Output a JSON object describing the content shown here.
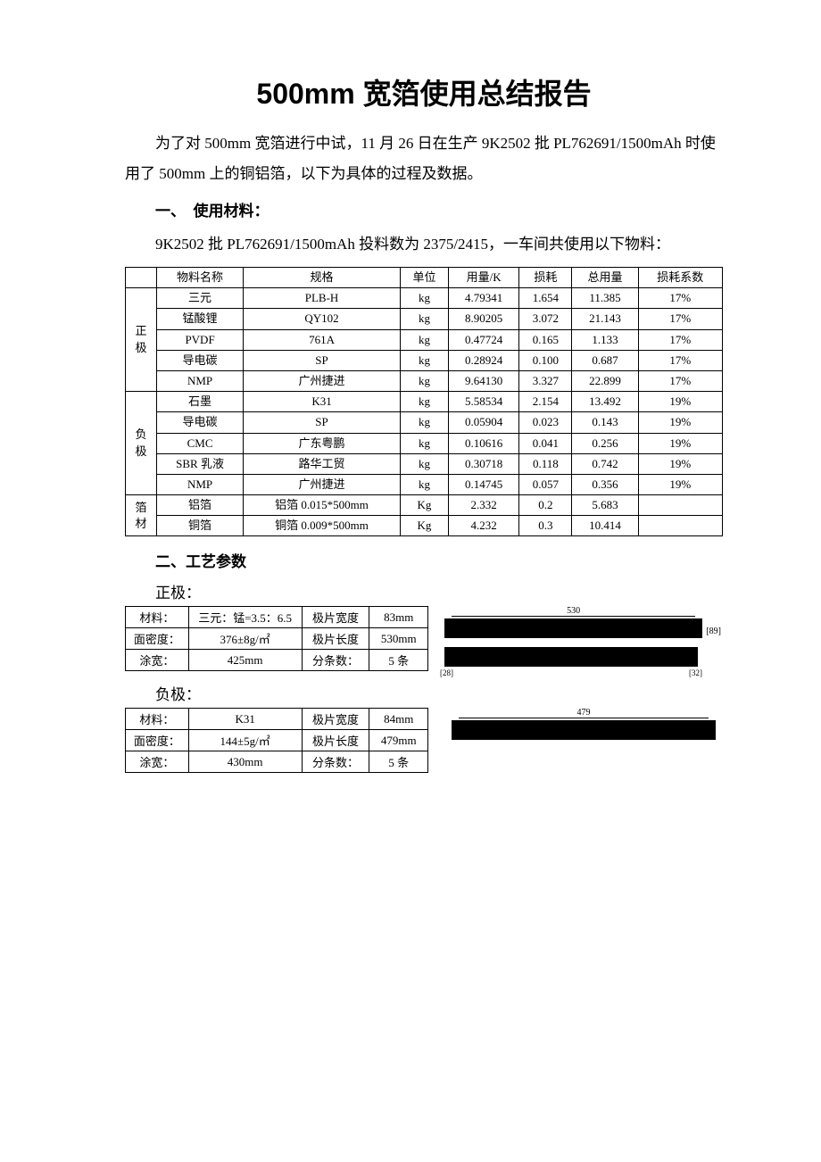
{
  "title": "500mm 宽箔使用总结报告",
  "intro": "为了对 500mm 宽箔进行中试，11 月 26 日在生产 9K2502 批 PL762691/1500mAh 时使用了 500mm 上的铜铝箔，以下为具体的过程及数据。",
  "sec1": {
    "heading": "一、　使用材料：",
    "line": "9K2502 批 PL762691/1500mAh 投料数为 2375/2415，一车间共使用以下物料："
  },
  "materials": {
    "columns": [
      "",
      "物料名称",
      "规格",
      "单位",
      "用量/K",
      "损耗",
      "总用量",
      "损耗系数"
    ],
    "groups": [
      {
        "label": "正极",
        "rows": [
          [
            "三元",
            "PLB-H",
            "kg",
            "4.79341",
            "1.654",
            "11.385",
            "17%"
          ],
          [
            "锰酸锂",
            "QY102",
            "kg",
            "8.90205",
            "3.072",
            "21.143",
            "17%"
          ],
          [
            "PVDF",
            "761A",
            "kg",
            "0.47724",
            "0.165",
            "1.133",
            "17%"
          ],
          [
            "导电碳",
            "SP",
            "kg",
            "0.28924",
            "0.100",
            "0.687",
            "17%"
          ],
          [
            "NMP",
            "广州捷进",
            "kg",
            "9.64130",
            "3.327",
            "22.899",
            "17%"
          ]
        ]
      },
      {
        "label": "负极",
        "rows": [
          [
            "石墨",
            "K31",
            "kg",
            "5.58534",
            "2.154",
            "13.492",
            "19%"
          ],
          [
            "导电碳",
            "SP",
            "kg",
            "0.05904",
            "0.023",
            "0.143",
            "19%"
          ],
          [
            "CMC",
            "广东粤鹏",
            "kg",
            "0.10616",
            "0.041",
            "0.256",
            "19%"
          ],
          [
            "SBR 乳液",
            "路华工贸",
            "kg",
            "0.30718",
            "0.118",
            "0.742",
            "19%"
          ],
          [
            "NMP",
            "广州捷进",
            "kg",
            "0.14745",
            "0.057",
            "0.356",
            "19%"
          ]
        ]
      },
      {
        "label": "箔材",
        "rows": [
          [
            "铝箔",
            "铝箔 0.015*500mm",
            "Kg",
            "2.332",
            "0.2",
            "5.683",
            ""
          ],
          [
            "铜箔",
            "铜箔 0.009*500mm",
            "Kg",
            "4.232",
            "0.3",
            "10.414",
            ""
          ]
        ]
      }
    ]
  },
  "sec2": {
    "heading": "二、工艺参数",
    "positive_label": "正极：",
    "negative_label": "负极：",
    "positive": {
      "rows": [
        [
          "材料：",
          "三元：锰=3.5：6.5",
          "极片宽度",
          "83mm"
        ],
        [
          "面密度：",
          "376±8g/㎡",
          "极片长度",
          "530mm"
        ],
        [
          "涂宽：",
          "425mm",
          "分条数：",
          "5 条"
        ]
      ],
      "dim_top": "530",
      "dim_side": "89",
      "dim_bl": "28",
      "dim_br": "32"
    },
    "negative": {
      "rows": [
        [
          "材料：",
          "K31",
          "极片宽度",
          "84mm"
        ],
        [
          "面密度：",
          "144±5g/㎡",
          "极片长度",
          "479mm"
        ],
        [
          "涂宽：",
          "430mm",
          "分条数：",
          "5 条"
        ]
      ],
      "dim_top": "479"
    }
  }
}
